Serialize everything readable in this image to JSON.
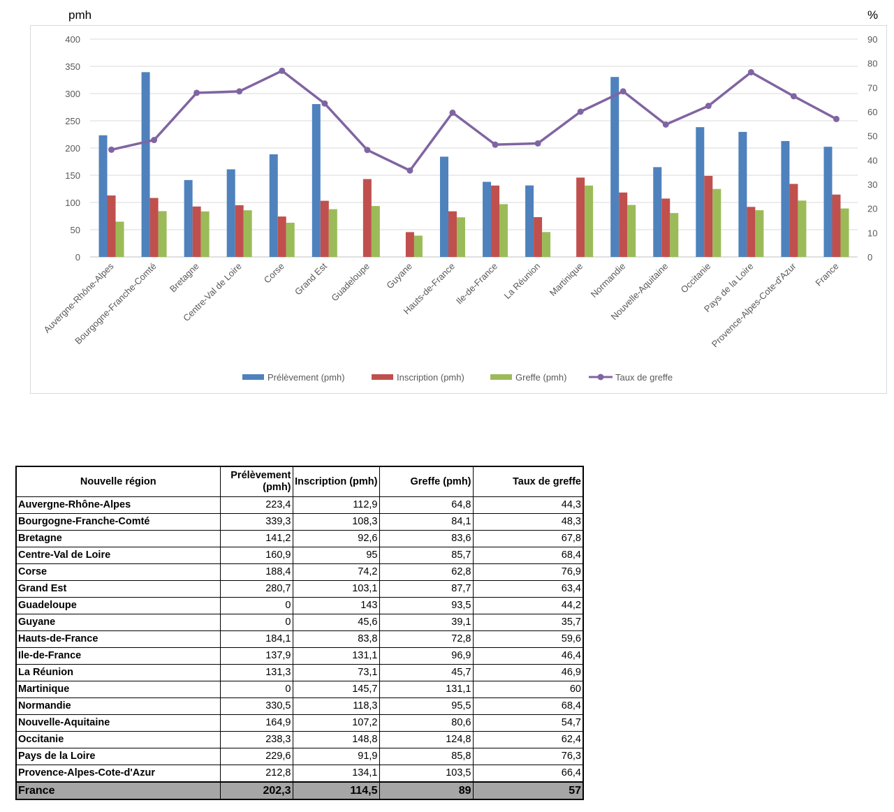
{
  "chart_data": {
    "type": "bar",
    "y_left_unit": "pmh",
    "y_right_unit": "%",
    "ylim_left": [
      0,
      400
    ],
    "ylim_right": [
      0,
      90
    ],
    "y_left_ticks": [
      "0",
      "50",
      "100",
      "150",
      "200",
      "250",
      "300",
      "350",
      "400"
    ],
    "y_right_ticks": [
      "0",
      "10",
      "20",
      "30",
      "40",
      "50",
      "60",
      "70",
      "80",
      "90"
    ],
    "grid": true,
    "legend_position": "bottom",
    "categories": [
      "Auvergne-Rhône-Alpes",
      "Bourgogne-Franche-Comté",
      "Bretagne",
      "Centre-Val de Loire",
      "Corse",
      "Grand Est",
      "Guadeloupe",
      "Guyane",
      "Hauts-de-France",
      "Ile-de-France",
      "La Réunion",
      "Martinique",
      "Normandie",
      "Nouvelle-Aquitaine",
      "Occitanie",
      "Pays de la Loire",
      "Provence-Alpes-Cote-d'Azur",
      "France"
    ],
    "series": [
      {
        "name": "Prélèvement (pmh)",
        "type": "bar",
        "axis": "left",
        "color": "#4f81bd",
        "values": [
          223.4,
          339.3,
          141.2,
          160.9,
          188.4,
          280.7,
          0,
          0,
          184.1,
          137.9,
          131.3,
          0,
          330.5,
          164.9,
          238.3,
          229.6,
          212.8,
          202.3
        ]
      },
      {
        "name": "Inscription (pmh)",
        "type": "bar",
        "axis": "left",
        "color": "#c0504d",
        "values": [
          112.9,
          108.3,
          92.6,
          95,
          74.2,
          103.1,
          143,
          45.6,
          83.8,
          131.1,
          73.1,
          145.7,
          118.3,
          107.2,
          148.8,
          91.9,
          134.1,
          114.5
        ]
      },
      {
        "name": "Greffe (pmh)",
        "type": "bar",
        "axis": "left",
        "color": "#9bbb59",
        "values": [
          64.8,
          84.1,
          83.6,
          85.7,
          62.8,
          87.7,
          93.5,
          39.1,
          72.8,
          96.9,
          45.7,
          131.1,
          95.5,
          80.6,
          124.8,
          85.8,
          103.5,
          89
        ]
      },
      {
        "name": "Taux de greffe",
        "type": "line",
        "axis": "right",
        "color": "#8064a2",
        "values": [
          44.3,
          48.3,
          67.8,
          68.4,
          76.9,
          63.4,
          44.2,
          35.7,
          59.6,
          46.4,
          46.9,
          60,
          68.4,
          54.7,
          62.4,
          76.3,
          66.4,
          57
        ]
      }
    ]
  },
  "table": {
    "headers": [
      "Nouvelle région",
      "Prélèvement (pmh)",
      "Inscription (pmh)",
      "Greffe (pmh)",
      "Taux de greffe"
    ],
    "rows": [
      [
        "Auvergne-Rhône-Alpes",
        "223,4",
        "112,9",
        "64,8",
        "44,3"
      ],
      [
        "Bourgogne-Franche-Comté",
        "339,3",
        "108,3",
        "84,1",
        "48,3"
      ],
      [
        "Bretagne",
        "141,2",
        "92,6",
        "83,6",
        "67,8"
      ],
      [
        "Centre-Val de Loire",
        "160,9",
        "95",
        "85,7",
        "68,4"
      ],
      [
        "Corse",
        "188,4",
        "74,2",
        "62,8",
        "76,9"
      ],
      [
        "Grand Est",
        "280,7",
        "103,1",
        "87,7",
        "63,4"
      ],
      [
        "Guadeloupe",
        "0",
        "143",
        "93,5",
        "44,2"
      ],
      [
        "Guyane",
        "0",
        "45,6",
        "39,1",
        "35,7"
      ],
      [
        "Hauts-de-France",
        "184,1",
        "83,8",
        "72,8",
        "59,6"
      ],
      [
        "Ile-de-France",
        "137,9",
        "131,1",
        "96,9",
        "46,4"
      ],
      [
        "La Réunion",
        "131,3",
        "73,1",
        "45,7",
        "46,9"
      ],
      [
        "Martinique",
        "0",
        "145,7",
        "131,1",
        "60"
      ],
      [
        "Normandie",
        "330,5",
        "118,3",
        "95,5",
        "68,4"
      ],
      [
        "Nouvelle-Aquitaine",
        "164,9",
        "107,2",
        "80,6",
        "54,7"
      ],
      [
        "Occitanie",
        "238,3",
        "148,8",
        "124,8",
        "62,4"
      ],
      [
        "Pays de la Loire",
        "229,6",
        "91,9",
        "85,8",
        "76,3"
      ],
      [
        "Provence-Alpes-Cote-d'Azur",
        "212,8",
        "134,1",
        "103,5",
        "66,4"
      ]
    ],
    "total_row": [
      "France",
      "202,3",
      "114,5",
      "89",
      "57"
    ]
  }
}
